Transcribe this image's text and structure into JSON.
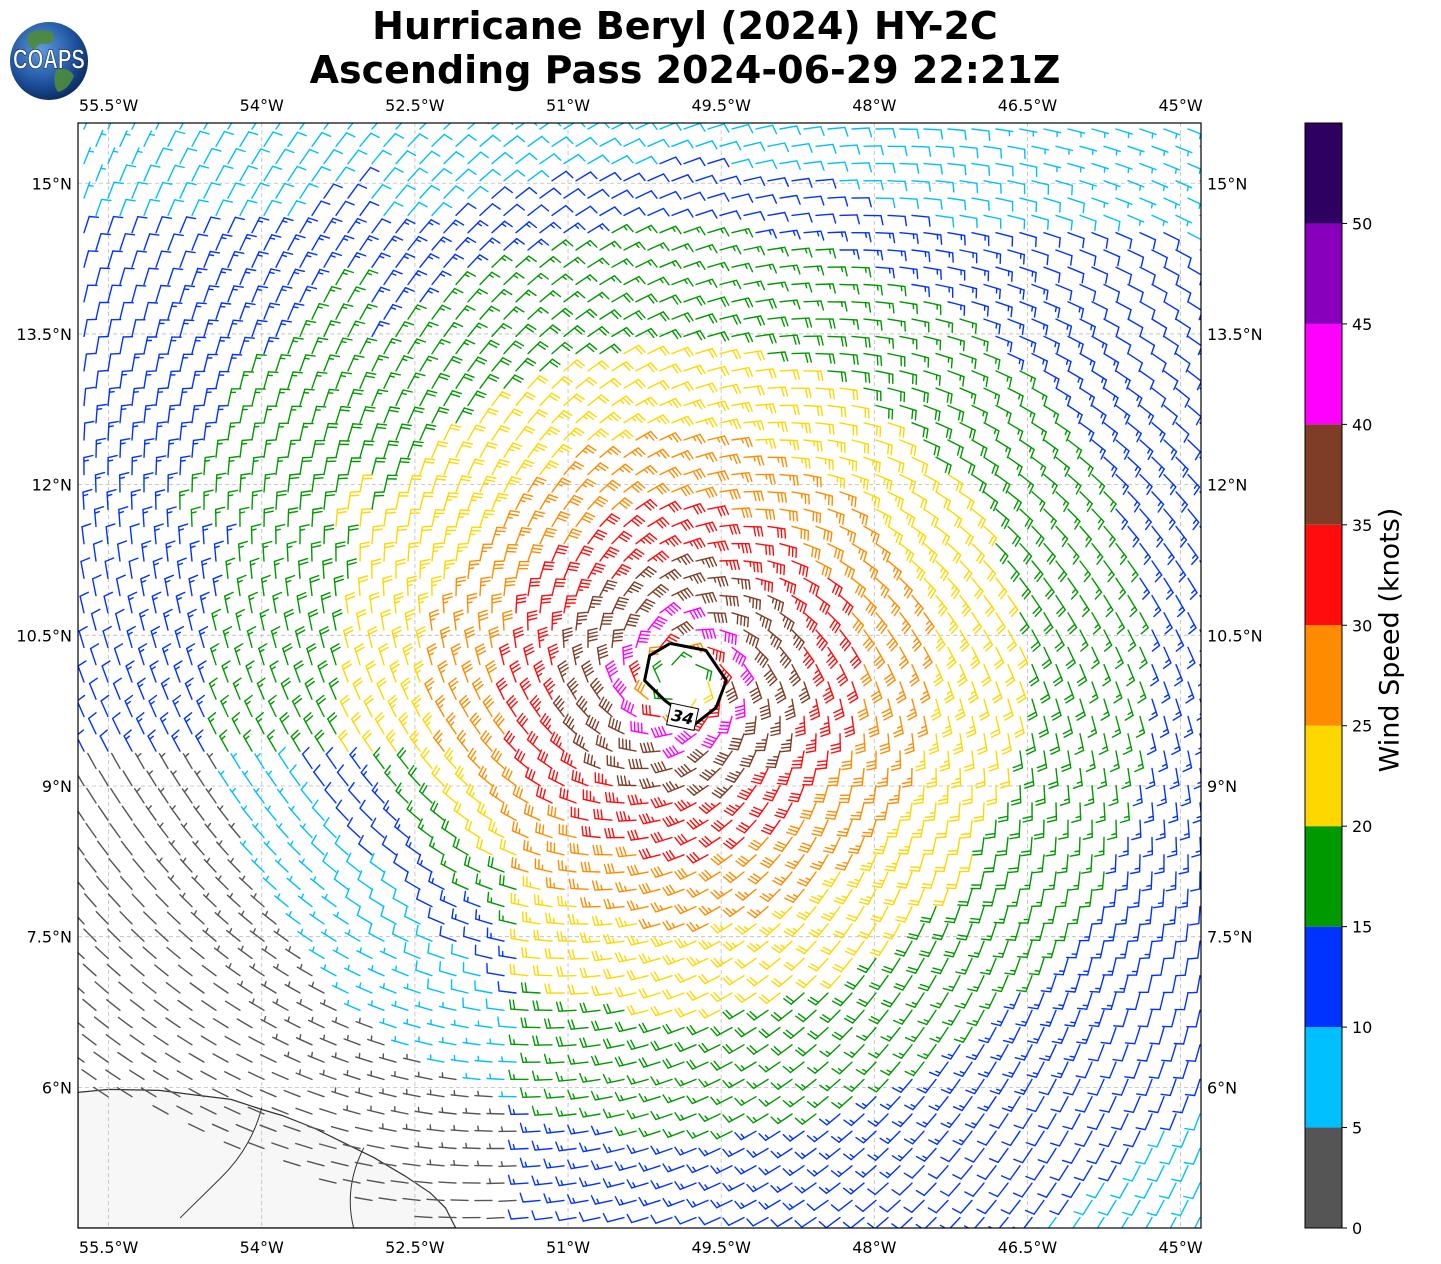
{
  "title": {
    "line1": "Hurricane Beryl (2024) HY-2C",
    "line2": "Ascending Pass 2024-06-29 22:21Z"
  },
  "logo": {
    "text": "COAPS",
    "icon": "globe-icon"
  },
  "map": {
    "lon_range": [
      -55.8,
      -44.8
    ],
    "lat_range": [
      4.6,
      15.6
    ],
    "lon_ticks": [
      {
        "value": -55.5,
        "label": "55.5°W"
      },
      {
        "value": -54.0,
        "label": "54°W"
      },
      {
        "value": -52.5,
        "label": "52.5°W"
      },
      {
        "value": -51.0,
        "label": "51°W"
      },
      {
        "value": -49.5,
        "label": "49.5°W"
      },
      {
        "value": -48.0,
        "label": "48°W"
      },
      {
        "value": -46.5,
        "label": "46.5°W"
      },
      {
        "value": -45.0,
        "label": "45°W"
      }
    ],
    "lat_ticks": [
      {
        "value": 15.0,
        "label": "15°N"
      },
      {
        "value": 13.5,
        "label": "13.5°N"
      },
      {
        "value": 12.0,
        "label": "12°N"
      },
      {
        "value": 10.5,
        "label": "10.5°N"
      },
      {
        "value": 9.0,
        "label": "9°N"
      },
      {
        "value": 7.5,
        "label": "7.5°N"
      },
      {
        "value": 6.0,
        "label": "6°N"
      }
    ],
    "gridlines": true,
    "storm_center": {
      "lon": -49.9,
      "lat": 10.05
    },
    "contour_label": "34"
  },
  "colorbar": {
    "label": "Wind Speed (knots)",
    "ticks": [
      "0",
      "5",
      "10",
      "15",
      "20",
      "25",
      "30",
      "35",
      "40",
      "45",
      "50"
    ],
    "bins": [
      {
        "min": 0,
        "max": 5,
        "color": "#555555"
      },
      {
        "min": 5,
        "max": 10,
        "color": "#00bfff"
      },
      {
        "min": 10,
        "max": 15,
        "color": "#0033ff"
      },
      {
        "min": 15,
        "max": 20,
        "color": "#009900"
      },
      {
        "min": 20,
        "max": 25,
        "color": "#ffd700"
      },
      {
        "min": 25,
        "max": 30,
        "color": "#ff8c00"
      },
      {
        "min": 30,
        "max": 35,
        "color": "#ff0d0d"
      },
      {
        "min": 35,
        "max": 40,
        "color": "#803d26"
      },
      {
        "min": 40,
        "max": 45,
        "color": "#ff00ff"
      },
      {
        "min": 45,
        "max": 50,
        "color": "#8800bb"
      },
      {
        "min": 50,
        "max": 55,
        "color": "#2e0060"
      }
    ]
  }
}
